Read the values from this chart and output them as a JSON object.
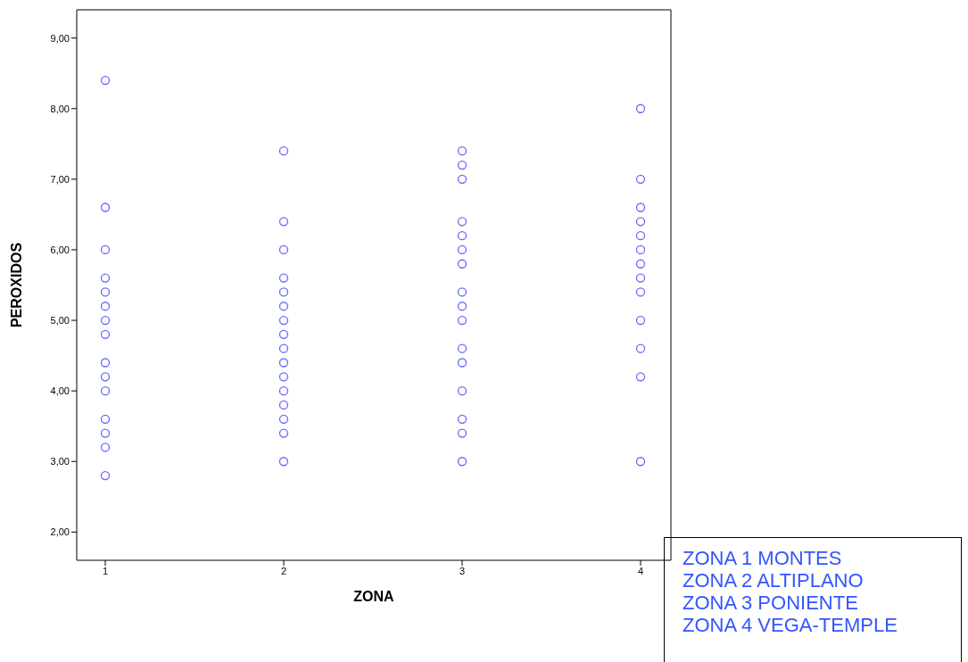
{
  "chart_data": {
    "type": "scatter",
    "xlabel": "ZONA",
    "ylabel": "PEROXIDOS",
    "xlim": [
      0.84,
      4.17
    ],
    "xticks": [
      1,
      2,
      3,
      4
    ],
    "ylim": [
      1.6,
      9.4
    ],
    "yticks": [
      {
        "value": 2,
        "label": "2,00"
      },
      {
        "value": 3,
        "label": "3,00"
      },
      {
        "value": 4,
        "label": "4,00"
      },
      {
        "value": 5,
        "label": "5,00"
      },
      {
        "value": 6,
        "label": "6,00"
      },
      {
        "value": 7,
        "label": "7,00"
      },
      {
        "value": 8,
        "label": "8,00"
      },
      {
        "value": 9,
        "label": "9,00"
      }
    ],
    "marker": "circle",
    "grid": false,
    "legend": false,
    "series": [
      {
        "color": "#6666ff",
        "x": [
          1,
          1,
          1,
          1,
          1,
          1,
          1,
          1,
          1,
          1,
          1,
          1,
          1,
          1,
          1,
          2,
          2,
          2,
          2,
          2,
          2,
          2,
          2,
          2,
          2,
          2,
          2,
          2,
          2,
          2,
          2,
          3,
          3,
          3,
          3,
          3,
          3,
          3,
          3,
          3,
          3,
          3,
          3,
          3,
          3,
          3,
          3,
          4,
          4,
          4,
          4,
          4,
          4,
          4,
          4,
          4,
          4,
          4,
          4,
          4
        ],
        "values": [
          8.4,
          6.6,
          6.0,
          5.6,
          5.4,
          5.2,
          5.0,
          4.8,
          4.4,
          4.2,
          4.0,
          3.6,
          3.4,
          3.2,
          2.8,
          7.4,
          6.4,
          6.0,
          5.6,
          5.4,
          5.2,
          5.0,
          4.8,
          4.6,
          4.4,
          4.2,
          4.0,
          3.8,
          3.6,
          3.4,
          3.0,
          7.4,
          7.2,
          7.0,
          6.4,
          6.2,
          6.0,
          5.8,
          5.4,
          5.2,
          5.0,
          4.6,
          4.4,
          4.0,
          3.6,
          3.4,
          3.0,
          8.0,
          7.0,
          6.6,
          6.4,
          6.2,
          6.0,
          5.8,
          5.6,
          5.4,
          5.0,
          4.6,
          4.2,
          3.0
        ]
      }
    ],
    "annotations": [
      "ZONA 1 MONTES",
      "ZONA 2 ALTIPLANO",
      "ZONA 3 PONIENTE",
      "ZONA 4 VEGA-TEMPLE"
    ]
  }
}
